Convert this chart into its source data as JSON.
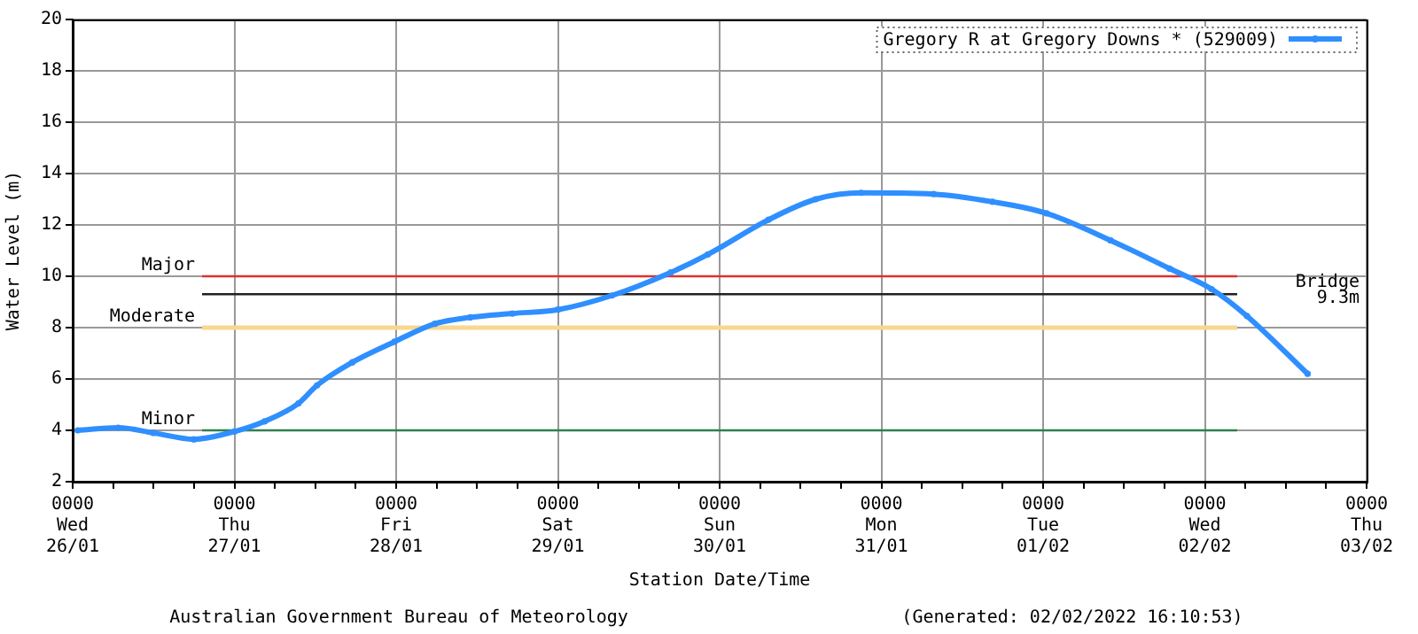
{
  "chart_data": {
    "type": "line",
    "xlabel": "Station Date/Time",
    "ylabel": "Water Level (m)",
    "annotations": [
      "Australian Government Bureau of Meteorology",
      "(Generated: 02/02/2022 16:10:53)"
    ],
    "x": [
      "2022-01-26T00:45",
      "2022-01-26T06:45",
      "2022-01-26T12:00",
      "2022-01-26T18:00",
      "2022-01-27T00:00",
      "2022-01-27T04:30",
      "2022-01-27T09:30",
      "2022-01-27T12:15",
      "2022-01-27T17:30",
      "2022-01-27T23:45",
      "2022-01-28T05:45",
      "2022-01-28T11:00",
      "2022-01-28T17:15",
      "2022-01-29T00:00",
      "2022-01-29T08:00",
      "2022-01-29T16:45",
      "2022-01-29T22:15",
      "2022-01-30T07:15",
      "2022-01-30T14:15",
      "2022-01-30T21:00",
      "2022-01-31T07:45",
      "2022-01-31T16:30",
      "2022-02-01T00:30",
      "2022-02-01T10:00",
      "2022-02-01T18:45",
      "2022-02-02T01:00",
      "2022-02-02T06:15",
      "2022-02-02T15:15"
    ],
    "series": [
      {
        "name": "Gregory R at Gregory Downs * (529009)",
        "color": "#2f8fff",
        "values": [
          4.0,
          4.1,
          3.9,
          3.65,
          3.95,
          4.35,
          5.05,
          5.75,
          6.65,
          7.45,
          8.15,
          8.4,
          8.55,
          8.7,
          9.25,
          10.15,
          10.85,
          12.2,
          13.0,
          13.25,
          13.2,
          12.9,
          12.45,
          11.4,
          10.3,
          9.5,
          8.45,
          6.2
        ]
      }
    ],
    "xlim": [
      "2022-01-26T00:00",
      "2022-02-03T00:00"
    ],
    "xticks": [
      {
        "value": "2022-01-26T00:00",
        "label": "0000\nWed\n26/01"
      },
      {
        "value": "2022-01-26T06:00",
        "label": null
      },
      {
        "value": "2022-01-26T12:00",
        "label": null
      },
      {
        "value": "2022-01-26T18:00",
        "label": null
      },
      {
        "value": "2022-01-27T00:00",
        "label": "0000\nThu\n27/01"
      },
      {
        "value": "2022-01-27T06:00",
        "label": null
      },
      {
        "value": "2022-01-27T12:00",
        "label": null
      },
      {
        "value": "2022-01-27T18:00",
        "label": null
      },
      {
        "value": "2022-01-28T00:00",
        "label": "0000\nFri\n28/01"
      },
      {
        "value": "2022-01-28T06:00",
        "label": null
      },
      {
        "value": "2022-01-28T12:00",
        "label": null
      },
      {
        "value": "2022-01-28T18:00",
        "label": null
      },
      {
        "value": "2022-01-29T00:00",
        "label": "0000\nSat\n29/01"
      },
      {
        "value": "2022-01-29T06:00",
        "label": null
      },
      {
        "value": "2022-01-29T12:00",
        "label": null
      },
      {
        "value": "2022-01-29T18:00",
        "label": null
      },
      {
        "value": "2022-01-30T00:00",
        "label": "0000\nSun\n30/01"
      },
      {
        "value": "2022-01-30T06:00",
        "label": null
      },
      {
        "value": "2022-01-30T12:00",
        "label": null
      },
      {
        "value": "2022-01-30T18:00",
        "label": null
      },
      {
        "value": "2022-01-31T00:00",
        "label": "0000\nMon\n31/01"
      },
      {
        "value": "2022-01-31T06:00",
        "label": null
      },
      {
        "value": "2022-01-31T12:00",
        "label": null
      },
      {
        "value": "2022-01-31T18:00",
        "label": null
      },
      {
        "value": "2022-02-01T00:00",
        "label": "0000\nTue\n01/02"
      },
      {
        "value": "2022-02-01T06:00",
        "label": null
      },
      {
        "value": "2022-02-01T12:00",
        "label": null
      },
      {
        "value": "2022-02-01T18:00",
        "label": null
      },
      {
        "value": "2022-02-02T00:00",
        "label": "0000\nWed\n02/02"
      },
      {
        "value": "2022-02-02T06:00",
        "label": null
      },
      {
        "value": "2022-02-02T12:00",
        "label": null
      },
      {
        "value": "2022-02-02T18:00",
        "label": null
      },
      {
        "value": "2022-02-03T00:00",
        "label": "0000\nThu\n03/02"
      }
    ],
    "ylim": [
      2,
      20
    ],
    "yticks": [
      2,
      4,
      6,
      8,
      10,
      12,
      14,
      16,
      18,
      20
    ],
    "ref_lines": [
      {
        "axis": "y",
        "value": 10,
        "label": "Major",
        "color": "#e03030"
      },
      {
        "axis": "y",
        "value": 9.3,
        "label": "Bridge\n9.3m",
        "color": "#202020"
      },
      {
        "axis": "y",
        "value": 8,
        "label": "Moderate",
        "color": "#f8d890"
      },
      {
        "axis": "y",
        "value": 4,
        "label": "Minor",
        "color": "#308050"
      }
    ],
    "grid": true,
    "legend": "top right",
    "marker": "circle",
    "line_style": "solid"
  }
}
